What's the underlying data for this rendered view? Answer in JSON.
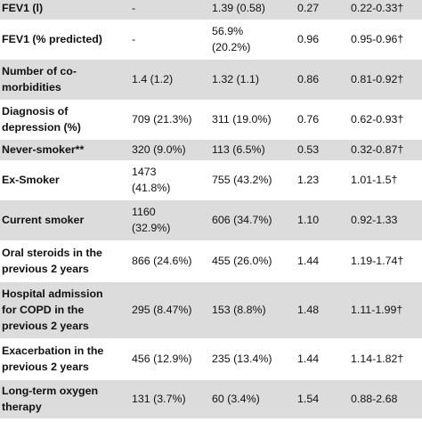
{
  "rows": [
    {
      "label": "FEV1 (l)",
      "c1": "-",
      "c2": "1.39 (0.58)",
      "c3": "0.27",
      "c4": "0.22-0.33†",
      "shade": true,
      "h": 26
    },
    {
      "label": "FEV1 (% predicted)",
      "c1": "-",
      "c2": "56.9%\n(20.2%)",
      "c3": "0.96",
      "c4": "0.95-0.96†",
      "shade": false,
      "h": 44
    },
    {
      "label": "Number of co-\nmorbidities",
      "c1": "1.4 (1.2)",
      "c2": "1.32 (1.1)",
      "c3": "0.86",
      "c4": "0.81-0.92†",
      "shade": true,
      "h": 46
    },
    {
      "label": "Diagnosis of\ndepression (%)",
      "c1": "709 (21.3%)",
      "c2": "311 (19.0%)",
      "c3": "0.76",
      "c4": "0.62-0.93†",
      "shade": false,
      "h": 44
    },
    {
      "label": "Never-smoker**",
      "c1": "320 (9.0%)",
      "c2": "113 (6.5%)",
      "c3": "0.53",
      "c4": "0.32-0.87†",
      "shade": true,
      "h": 24
    },
    {
      "label": "Ex-Smoker",
      "c1": "1473\n(41.8%)",
      "c2": "755 (43.2%)",
      "c3": "1.23",
      "c4": "1.01-1.5†",
      "shade": false,
      "h": 44
    },
    {
      "label": "Current smoker",
      "c1": "1160\n(32.9%)",
      "c2": "606 (34.7%)",
      "c3": "1.10",
      "c4": "0.92-1.33",
      "shade": true,
      "h": 46
    },
    {
      "label": "Oral steroids in the\nprevious 2 years",
      "c1": "866 (24.6%)",
      "c2": "455 (26.0%)",
      "c3": "1.44",
      "c4": "1.19-1.74†",
      "shade": false,
      "h": 46
    },
    {
      "label": "Hospital admission\nfor COPD in the\nprevious 2 years",
      "c1": "295 (8.47%)",
      "c2": "153 (8.8%)",
      "c3": "1.48",
      "c4": "1.11-1.99†",
      "shade": true,
      "h": 64
    },
    {
      "label": "Exacerbation in the\nprevious 2 years",
      "c1": "456 (12.9%)",
      "c2": "235 (13.4%)",
      "c3": "1.44",
      "c4": "1.14-1.82†",
      "shade": false,
      "h": 46
    },
    {
      "label": "Long-term oxygen\ntherapy",
      "c1": "131 (3.7%)",
      "c2": "60 (3.4%)",
      "c3": "1.54",
      "c4": "0.88-2.68",
      "shade": true,
      "h": 44
    }
  ]
}
